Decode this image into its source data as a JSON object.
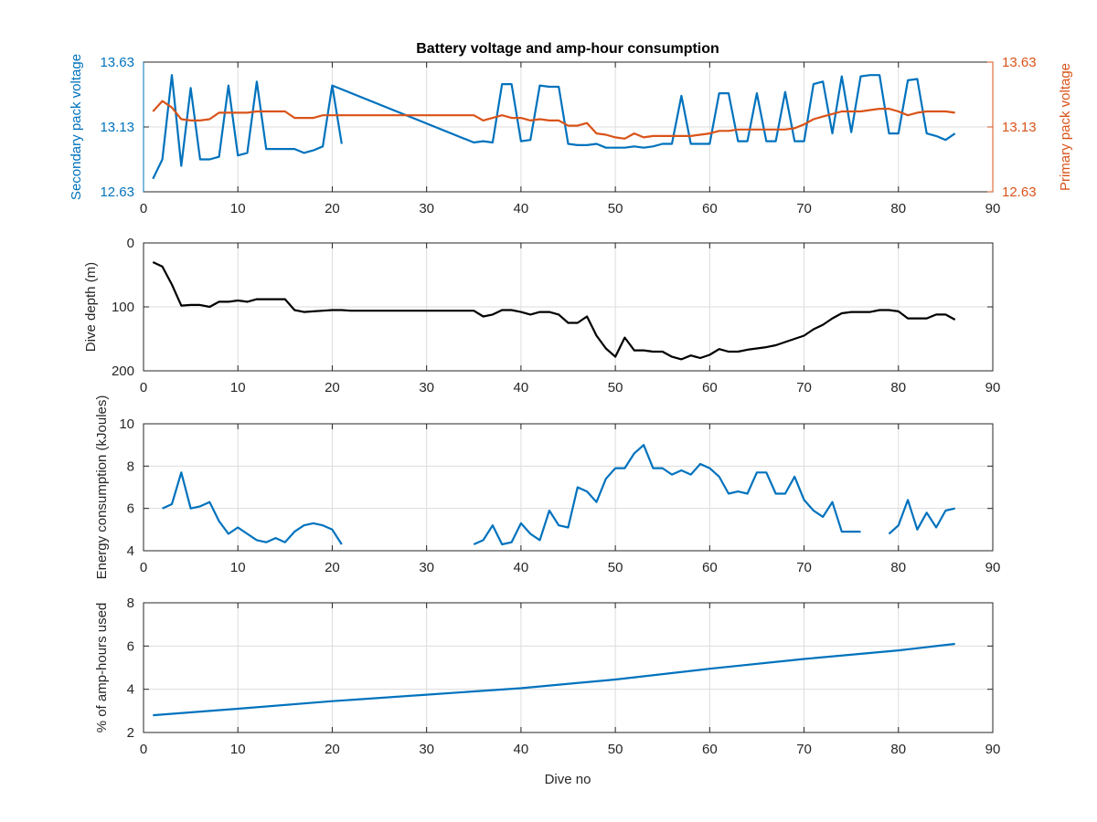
{
  "figure": {
    "title": "Battery voltage and amp-hour consumption",
    "xlabel": "Dive no",
    "colors": {
      "blue": "#0072bd",
      "orange": "#d95319",
      "black": "#000000",
      "grid": "#dcdcdc"
    }
  },
  "chart_data": [
    {
      "type": "line",
      "title": "Battery voltage and amp-hour consumption",
      "xlabel": "",
      "ylabel": "Secondary pack voltage",
      "ylabel_right": "Primary pack voltage",
      "xlim": [
        0,
        90
      ],
      "ylim": [
        12.63,
        13.63
      ],
      "ylim_right": [
        12.63,
        13.63
      ],
      "xticks": [
        0,
        10,
        20,
        30,
        40,
        50,
        60,
        70,
        80,
        90
      ],
      "yticks": [
        "12.63",
        "13.13",
        "13.63"
      ],
      "yticks_right": [
        "12.63",
        "13.13",
        "13.63"
      ],
      "grid": true,
      "series": [
        {
          "axis": "left",
          "color": "#0072bd",
          "x": [
            1,
            2,
            3,
            4,
            5,
            6,
            7,
            8,
            9,
            10,
            11,
            12,
            13,
            14,
            15,
            16,
            17,
            18,
            19,
            20,
            21,
            null,
            20,
            35,
            36,
            37,
            38,
            39,
            40,
            41,
            42,
            43,
            44,
            45,
            46,
            47,
            48,
            49,
            50,
            51,
            52,
            53,
            54,
            55,
            56,
            57,
            58,
            59,
            60,
            61,
            62,
            63,
            64,
            65,
            66,
            67,
            68,
            69,
            70,
            71,
            72,
            73,
            74,
            75,
            76,
            77,
            78,
            79,
            80,
            81,
            82,
            83,
            84,
            85,
            86
          ],
          "y": [
            12.73,
            12.88,
            13.53,
            12.83,
            13.43,
            12.88,
            12.88,
            12.9,
            13.45,
            12.91,
            12.93,
            13.48,
            12.96,
            12.96,
            12.96,
            12.96,
            12.93,
            12.95,
            12.98,
            13.45,
            13.0,
            null,
            13.45,
            13.01,
            13.02,
            13.01,
            13.46,
            13.46,
            13.02,
            13.03,
            13.45,
            13.44,
            13.44,
            13.0,
            12.99,
            12.99,
            13.0,
            12.97,
            12.97,
            12.97,
            12.98,
            12.97,
            12.98,
            13.0,
            13.0,
            13.37,
            13.0,
            13.0,
            13.0,
            13.39,
            13.39,
            13.02,
            13.02,
            13.39,
            13.02,
            13.02,
            13.4,
            13.02,
            13.02,
            13.46,
            13.48,
            13.08,
            13.52,
            13.09,
            13.52,
            13.53,
            13.53,
            13.08,
            13.08,
            13.49,
            13.5,
            13.08,
            13.06,
            13.03,
            13.08
          ]
        },
        {
          "axis": "right",
          "color": "#d95319",
          "x": [
            1,
            2,
            3,
            4,
            5,
            6,
            7,
            8,
            9,
            10,
            11,
            12,
            13,
            14,
            15,
            16,
            17,
            18,
            19,
            20,
            21,
            22,
            23,
            24,
            25,
            26,
            27,
            28,
            29,
            30,
            31,
            32,
            33,
            34,
            35,
            36,
            37,
            38,
            39,
            40,
            41,
            42,
            43,
            44,
            45,
            46,
            47,
            48,
            49,
            50,
            51,
            52,
            53,
            54,
            55,
            56,
            57,
            58,
            59,
            60,
            61,
            62,
            63,
            64,
            65,
            66,
            67,
            68,
            69,
            70,
            71,
            72,
            73,
            74,
            75,
            76,
            77,
            78,
            79,
            80,
            81,
            82,
            83,
            84,
            85,
            86
          ],
          "y": [
            13.25,
            13.33,
            13.28,
            13.19,
            13.18,
            13.18,
            13.19,
            13.24,
            13.24,
            13.24,
            13.24,
            13.25,
            13.25,
            13.25,
            13.25,
            13.2,
            13.2,
            13.2,
            13.22,
            13.22,
            13.22,
            13.22,
            13.22,
            13.22,
            13.22,
            13.22,
            13.22,
            13.22,
            13.22,
            13.22,
            13.22,
            13.22,
            13.22,
            13.22,
            13.22,
            13.18,
            13.2,
            13.22,
            13.2,
            13.2,
            13.18,
            13.19,
            13.18,
            13.18,
            13.14,
            13.14,
            13.16,
            13.08,
            13.07,
            13.05,
            13.04,
            13.08,
            13.05,
            13.06,
            13.06,
            13.06,
            13.06,
            13.06,
            13.07,
            13.08,
            13.1,
            13.1,
            13.11,
            13.11,
            13.11,
            13.11,
            13.11,
            13.11,
            13.12,
            13.15,
            13.19,
            13.21,
            13.23,
            13.25,
            13.25,
            13.25,
            13.26,
            13.27,
            13.27,
            13.25,
            13.22,
            13.24,
            13.25,
            13.25,
            13.25,
            13.24
          ]
        }
      ]
    },
    {
      "type": "line",
      "xlabel": "",
      "ylabel": "Dive depth (m)",
      "xlim": [
        0,
        90
      ],
      "ylim": [
        0,
        200
      ],
      "y_reversed": true,
      "xticks": [
        0,
        10,
        20,
        30,
        40,
        50,
        60,
        70,
        80,
        90
      ],
      "yticks": [
        "0",
        "100",
        "200"
      ],
      "grid": true,
      "series": [
        {
          "color": "#000000",
          "x": [
            1,
            2,
            3,
            4,
            5,
            6,
            7,
            8,
            9,
            10,
            11,
            12,
            13,
            14,
            15,
            16,
            17,
            18,
            19,
            20,
            21,
            22,
            23,
            24,
            25,
            26,
            27,
            28,
            29,
            30,
            31,
            32,
            33,
            34,
            35,
            36,
            37,
            38,
            39,
            40,
            41,
            42,
            43,
            44,
            45,
            46,
            47,
            48,
            49,
            50,
            51,
            52,
            53,
            54,
            55,
            56,
            57,
            58,
            59,
            60,
            61,
            62,
            63,
            64,
            65,
            66,
            67,
            68,
            69,
            70,
            71,
            72,
            73,
            74,
            75,
            76,
            77,
            78,
            79,
            80,
            81,
            82,
            83,
            84,
            85,
            86
          ],
          "y": [
            30,
            37,
            65,
            98,
            97,
            97,
            100,
            92,
            92,
            90,
            92,
            88,
            88,
            88,
            88,
            105,
            108,
            107,
            106,
            105,
            105,
            106,
            106,
            106,
            106,
            106,
            106,
            106,
            106,
            106,
            106,
            106,
            106,
            106,
            106,
            115,
            112,
            105,
            105,
            108,
            112,
            108,
            108,
            112,
            125,
            125,
            115,
            145,
            165,
            178,
            148,
            168,
            168,
            170,
            170,
            178,
            182,
            176,
            180,
            175,
            166,
            170,
            170,
            167,
            165,
            163,
            160,
            155,
            150,
            145,
            135,
            128,
            118,
            110,
            108,
            108,
            108,
            105,
            105,
            107,
            118,
            118,
            118,
            112,
            112,
            120
          ]
        }
      ]
    },
    {
      "type": "line",
      "xlabel": "",
      "ylabel": "Energy consumption (kJoules)",
      "xlim": [
        0,
        90
      ],
      "ylim": [
        4,
        10
      ],
      "xticks": [
        0,
        10,
        20,
        30,
        40,
        50,
        60,
        70,
        80,
        90
      ],
      "yticks": [
        "4",
        "6",
        "8",
        "10"
      ],
      "grid": true,
      "series": [
        {
          "color": "#0072bd",
          "x": [
            2,
            3,
            4,
            5,
            6,
            7,
            8,
            9,
            10,
            11,
            12,
            13,
            14,
            15,
            16,
            17,
            18,
            19,
            20,
            21,
            null,
            35,
            36,
            37,
            38,
            39,
            40,
            41,
            42,
            43,
            44,
            45,
            46,
            47,
            48,
            49,
            50,
            51,
            52,
            53,
            54,
            55,
            56,
            57,
            58,
            59,
            60,
            61,
            62,
            63,
            64,
            65,
            66,
            67,
            68,
            69,
            70,
            71,
            72,
            73,
            74,
            75,
            76,
            null,
            79,
            80,
            81,
            82,
            83,
            84,
            85,
            86
          ],
          "y": [
            6.0,
            6.2,
            7.7,
            6.0,
            6.1,
            6.3,
            5.4,
            4.8,
            5.1,
            4.8,
            4.5,
            4.4,
            4.6,
            4.4,
            4.9,
            5.2,
            5.3,
            5.2,
            5.0,
            4.3,
            null,
            4.3,
            4.5,
            5.2,
            4.3,
            4.4,
            5.3,
            4.8,
            4.5,
            5.9,
            5.2,
            5.1,
            7.0,
            6.8,
            6.3,
            7.4,
            7.9,
            7.9,
            8.6,
            9.0,
            7.9,
            7.9,
            7.6,
            7.8,
            7.6,
            8.1,
            7.9,
            7.5,
            6.7,
            6.8,
            6.7,
            7.7,
            7.7,
            6.7,
            6.7,
            7.5,
            6.4,
            5.9,
            5.6,
            6.3,
            4.9,
            4.9,
            4.9,
            null,
            4.8,
            5.2,
            6.4,
            5.0,
            5.8,
            5.1,
            5.9,
            6.0
          ]
        }
      ]
    },
    {
      "type": "line",
      "xlabel": "Dive no",
      "ylabel": "% of amp-hours used",
      "xlim": [
        0,
        90
      ],
      "ylim": [
        2,
        8
      ],
      "xticks": [
        0,
        10,
        20,
        30,
        40,
        50,
        60,
        70,
        80,
        90
      ],
      "yticks": [
        "2",
        "4",
        "6",
        "8"
      ],
      "grid": true,
      "series": [
        {
          "color": "#0072bd",
          "x": [
            1,
            10,
            20,
            30,
            40,
            50,
            60,
            70,
            80,
            86
          ],
          "y": [
            2.8,
            3.1,
            3.45,
            3.75,
            4.05,
            4.45,
            4.95,
            5.4,
            5.8,
            6.1
          ]
        }
      ]
    }
  ]
}
